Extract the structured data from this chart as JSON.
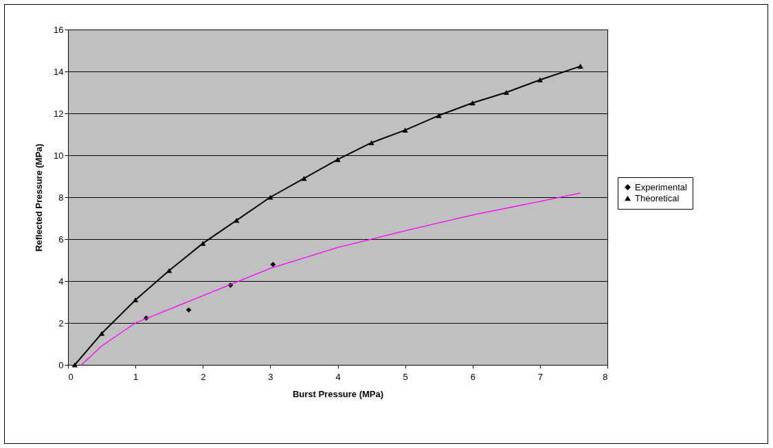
{
  "chart_data": {
    "type": "scatter",
    "xlabel": "Burst Pressure (MPa)",
    "ylabel": "Reflected Pressure (MPa)",
    "xlim": [
      0,
      8
    ],
    "xticks": [
      0,
      1,
      2,
      3,
      4,
      5,
      6,
      7,
      8
    ],
    "ylim": [
      0,
      16
    ],
    "yticks": [
      0,
      2,
      4,
      6,
      8,
      10,
      12,
      14,
      16
    ],
    "grid": "y",
    "legend": "right",
    "series": [
      {
        "name": "Experimental",
        "marker": "diamond",
        "color": "#000000",
        "x": [
          1.16,
          1.79,
          2.41,
          3.04
        ],
        "values": [
          2.23,
          2.62,
          3.8,
          4.79
        ]
      },
      {
        "name": "Theoretical",
        "type": "line",
        "marker": "triangle",
        "color": "#000000",
        "x": [
          0.1,
          0.5,
          1,
          1.5,
          2,
          2.5,
          3,
          3.5,
          4,
          4.5,
          5,
          5.5,
          6,
          6.5,
          7,
          7.6
        ],
        "values": [
          0,
          1.5,
          3.1,
          4.5,
          5.8,
          6.9,
          8.0,
          8.9,
          9.8,
          10.6,
          11.2,
          11.9,
          12.5,
          13.0,
          13.6,
          14.25
        ]
      },
      {
        "type": "line",
        "marker": "none",
        "color": "#ff00ff",
        "x": [
          0.2,
          0.5,
          1,
          2,
          3,
          4,
          5,
          6,
          7,
          7.6
        ],
        "values": [
          0,
          0.9,
          2.0,
          3.3,
          4.6,
          5.6,
          6.4,
          7.15,
          7.8,
          8.2
        ]
      }
    ]
  }
}
